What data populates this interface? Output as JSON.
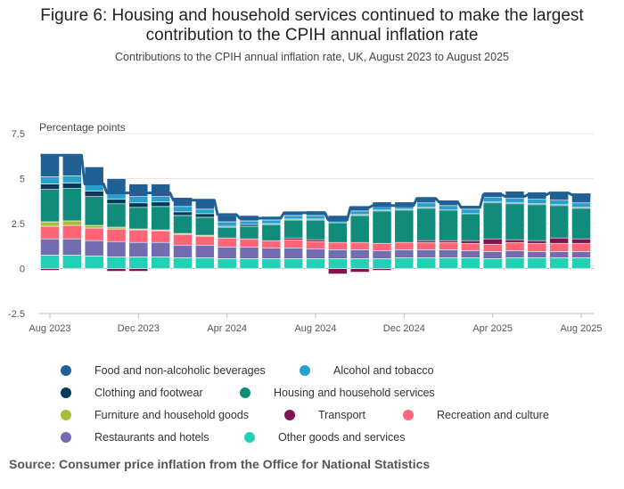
{
  "header": {
    "title_line1": "Figure 6: Housing and household services continued to make the largest",
    "title_line2": "contribution to the CPIH annual inflation rate",
    "subtitle": "Contributions to the CPIH annual inflation rate, UK, August 2023 to August 2025"
  },
  "footer": {
    "source": "Source: Consumer price inflation from the Office for National Statistics"
  },
  "chart_data": {
    "type": "bar",
    "stacked": true,
    "ylabel": "Percentage points",
    "ylim": [
      -2.5,
      7.5
    ],
    "yticks": [
      "7.5",
      "5",
      "2.5",
      "0",
      "-2.5"
    ],
    "yticks_values": [
      7.5,
      5,
      2.5,
      0,
      -2.5
    ],
    "grid": true,
    "categories": [
      "Aug 2023",
      "Sep 2023",
      "Oct 2023",
      "Nov 2023",
      "Dec 2023",
      "Jan 2024",
      "Feb 2024",
      "Mar 2024",
      "Apr 2024",
      "May 2024",
      "Jun 2024",
      "Jul 2024",
      "Aug 2024",
      "Sep 2024",
      "Oct 2024",
      "Nov 2024",
      "Dec 2024",
      "Jan 2025",
      "Feb 2025",
      "Mar 2025",
      "Apr 2025",
      "May 2025",
      "Jun 2025",
      "Jul 2025",
      "Aug 2025"
    ],
    "xtick_labels": [
      "Aug 2023",
      "Dec 2023",
      "Apr 2024",
      "Aug 2024",
      "Dec 2024",
      "Apr 2025",
      "Aug 2025"
    ],
    "xtick_indices": [
      0,
      4,
      8,
      12,
      16,
      20,
      24
    ],
    "series": [
      {
        "name": "Other goods and services",
        "color": "#22d0b6",
        "values": [
          0.75,
          0.75,
          0.7,
          0.65,
          0.65,
          0.65,
          0.6,
          0.6,
          0.55,
          0.55,
          0.55,
          0.55,
          0.55,
          0.55,
          0.55,
          0.55,
          0.6,
          0.6,
          0.6,
          0.6,
          0.55,
          0.6,
          0.6,
          0.6,
          0.6
        ]
      },
      {
        "name": "Restaurants and hotels",
        "color": "#746cb1",
        "values": [
          0.9,
          0.9,
          0.85,
          0.85,
          0.8,
          0.8,
          0.7,
          0.7,
          0.65,
          0.65,
          0.6,
          0.6,
          0.55,
          0.5,
          0.5,
          0.45,
          0.45,
          0.45,
          0.45,
          0.4,
          0.4,
          0.4,
          0.35,
          0.35,
          0.35
        ]
      },
      {
        "name": "Recreation and culture",
        "color": "#ff6575",
        "values": [
          0.7,
          0.75,
          0.7,
          0.7,
          0.7,
          0.65,
          0.6,
          0.5,
          0.5,
          0.45,
          0.4,
          0.45,
          0.4,
          0.4,
          0.4,
          0.4,
          0.4,
          0.4,
          0.4,
          0.4,
          0.4,
          0.45,
          0.45,
          0.45,
          0.45
        ]
      },
      {
        "name": "Transport",
        "color": "#801650",
        "values": [
          -0.1,
          0,
          0,
          -0.15,
          -0.15,
          0,
          0,
          0,
          0,
          0,
          0,
          0.1,
          0.1,
          -0.3,
          -0.2,
          -0.1,
          0,
          0.1,
          0.1,
          0.15,
          0.3,
          0.15,
          0.15,
          0.3,
          0.25
        ]
      },
      {
        "name": "Furniture and household goods",
        "color": "#a8bd3a",
        "values": [
          0.25,
          0.25,
          0.15,
          0.1,
          0.05,
          0.05,
          0.05,
          0.05,
          0,
          0,
          0,
          0,
          0,
          0,
          0,
          0,
          0,
          0,
          0,
          0,
          0,
          0,
          0,
          0,
          0
        ]
      },
      {
        "name": "Housing and household services",
        "color": "#118c7b",
        "values": [
          1.8,
          1.8,
          1.6,
          1.3,
          1.2,
          1.3,
          1.0,
          1.0,
          0.6,
          0.7,
          0.9,
          1.0,
          1.1,
          1.1,
          1.5,
          1.8,
          1.8,
          1.8,
          1.7,
          1.5,
          2.0,
          2.0,
          2.0,
          1.8,
          1.7
        ]
      },
      {
        "name": "Clothing and footwear",
        "color": "#003c57",
        "values": [
          0.3,
          0.3,
          0.3,
          0.25,
          0.25,
          0.25,
          0.2,
          0.2,
          0.05,
          0.1,
          0.05,
          0.05,
          0.05,
          0,
          0.05,
          0.05,
          0.05,
          0.05,
          0,
          0,
          0.05,
          0.05,
          0.05,
          0.05,
          0.05
        ]
      },
      {
        "name": "Alcohol and tobacco",
        "color": "#27a0cc",
        "values": [
          0.4,
          0.4,
          0.35,
          0.35,
          0.35,
          0.3,
          0.3,
          0.25,
          0.25,
          0.2,
          0.2,
          0.2,
          0.2,
          0.2,
          0.2,
          0.2,
          0.2,
          0.25,
          0.25,
          0.25,
          0.25,
          0.25,
          0.25,
          0.25,
          0.25
        ]
      },
      {
        "name": "Food and non-alcoholic beverages",
        "color": "#206095",
        "values": [
          1.2,
          1.2,
          1.0,
          0.8,
          0.7,
          0.7,
          0.5,
          0.5,
          0.35,
          0.3,
          0.2,
          0.2,
          0.25,
          0.2,
          0.25,
          0.25,
          0.2,
          0.3,
          0.3,
          0.2,
          0.3,
          0.4,
          0.4,
          0.45,
          0.45
        ]
      }
    ],
    "total_line": {
      "color": "#206095",
      "values": [
        6.3,
        6.3,
        4.7,
        4.2,
        4.2,
        4.2,
        3.8,
        3.8,
        3.0,
        2.8,
        2.8,
        3.1,
        3.1,
        2.7,
        3.4,
        3.5,
        3.5,
        3.9,
        3.7,
        3.4,
        4.1,
        4.0,
        4.1,
        4.2,
        4.1
      ]
    },
    "legend": [
      {
        "name": "Food and non-alcoholic beverages",
        "color": "#206095"
      },
      {
        "name": "Alcohol and tobacco",
        "color": "#27a0cc"
      },
      {
        "name": "Clothing and footwear",
        "color": "#003c57"
      },
      {
        "name": "Housing and household services",
        "color": "#118c7b"
      },
      {
        "name": "Furniture and household goods",
        "color": "#a8bd3a"
      },
      {
        "name": "Transport",
        "color": "#801650"
      },
      {
        "name": "Recreation and culture",
        "color": "#ff6575"
      },
      {
        "name": "Restaurants and hotels",
        "color": "#746cb1"
      },
      {
        "name": "Other goods and services",
        "color": "#22d0b6"
      }
    ]
  }
}
